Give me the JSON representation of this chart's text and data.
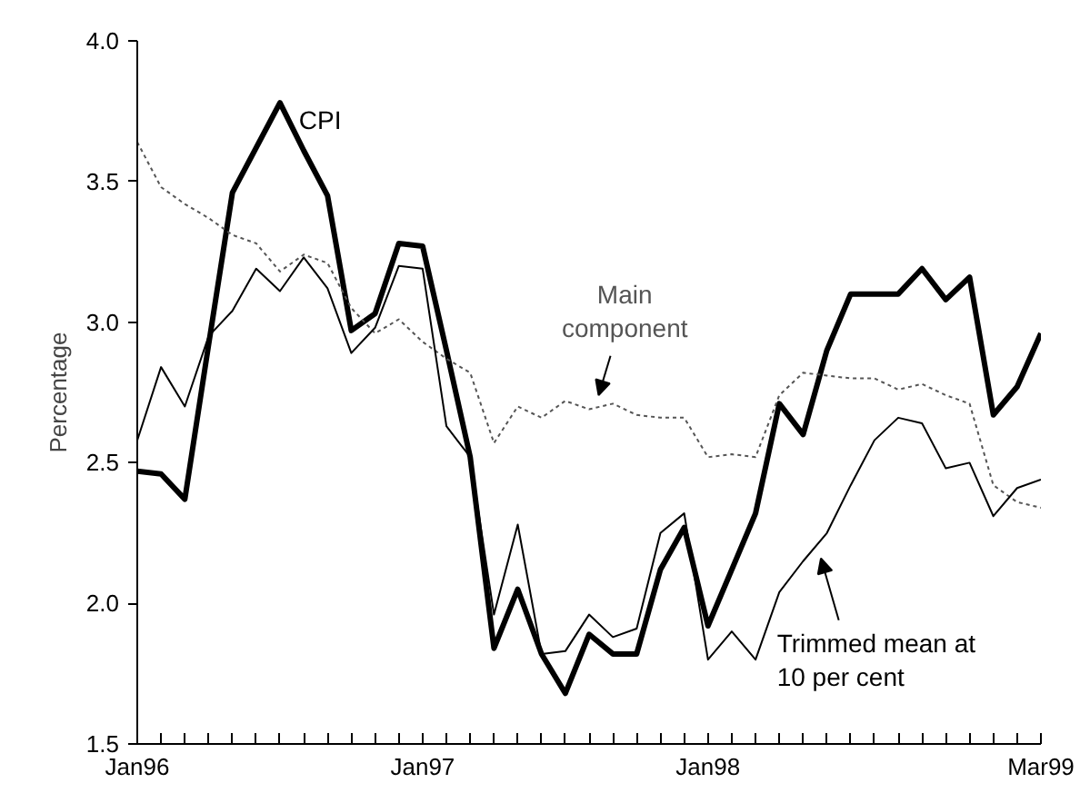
{
  "chart_data": {
    "type": "line",
    "ylabel": "Percentage",
    "categories": [
      "Jan96",
      null,
      null,
      null,
      null,
      null,
      null,
      null,
      null,
      null,
      null,
      null,
      "Jan97",
      null,
      null,
      null,
      null,
      null,
      null,
      null,
      null,
      null,
      null,
      null,
      "Jan98",
      null,
      null,
      null,
      null,
      null,
      null,
      null,
      null,
      null,
      null,
      null,
      null,
      null,
      "Mar99"
    ],
    "series": [
      {
        "name": "CPI",
        "color": "#000000",
        "line_style": "solid",
        "values": [
          2.47,
          2.46,
          2.37,
          2.92,
          3.46,
          3.62,
          3.78,
          3.61,
          3.45,
          2.97,
          3.03,
          3.28,
          3.27,
          2.9,
          2.52,
          1.84,
          2.05,
          1.82,
          1.68,
          1.89,
          1.82,
          1.82,
          2.12,
          2.27,
          1.92,
          2.12,
          2.32,
          2.71,
          2.6,
          2.9,
          3.1,
          3.1,
          3.1,
          3.19,
          3.08,
          3.16,
          2.67,
          2.77,
          2.96
        ]
      },
      {
        "name": "Main component",
        "color": "#555555",
        "line_style": "dotted",
        "values": [
          3.64,
          3.48,
          3.42,
          3.37,
          3.31,
          3.28,
          3.18,
          3.24,
          3.21,
          3.05,
          2.96,
          3.01,
          2.93,
          2.87,
          2.82,
          2.57,
          2.7,
          2.66,
          2.72,
          2.69,
          2.71,
          2.67,
          2.66,
          2.66,
          2.52,
          2.53,
          2.52,
          2.74,
          2.82,
          2.81,
          2.8,
          2.8,
          2.76,
          2.78,
          2.74,
          2.71,
          2.42,
          2.36,
          2.34
        ]
      },
      {
        "name": "Trimmed mean at 10 per cent",
        "color": "#000000",
        "line_style": "solid",
        "values": [
          2.58,
          2.84,
          2.7,
          2.95,
          3.04,
          3.19,
          3.11,
          3.23,
          3.12,
          2.89,
          2.98,
          3.2,
          3.19,
          2.63,
          2.52,
          1.96,
          2.28,
          1.82,
          1.83,
          1.96,
          1.88,
          1.91,
          2.25,
          2.32,
          1.8,
          1.9,
          1.8,
          2.04,
          2.15,
          2.25,
          2.42,
          2.58,
          2.66,
          2.64,
          2.48,
          2.5,
          2.31,
          2.41,
          2.44
        ]
      }
    ],
    "ylim": [
      1.5,
      4.0
    ],
    "yticks": [
      1.5,
      {
        "value": 2.0,
        "label": "2.0"
      },
      2.5,
      {
        "value": 3.0,
        "label": "3.0"
      },
      3.5,
      {
        "value": 4.0,
        "label": "4.0"
      }
    ],
    "grid": false,
    "marker": "none"
  }
}
